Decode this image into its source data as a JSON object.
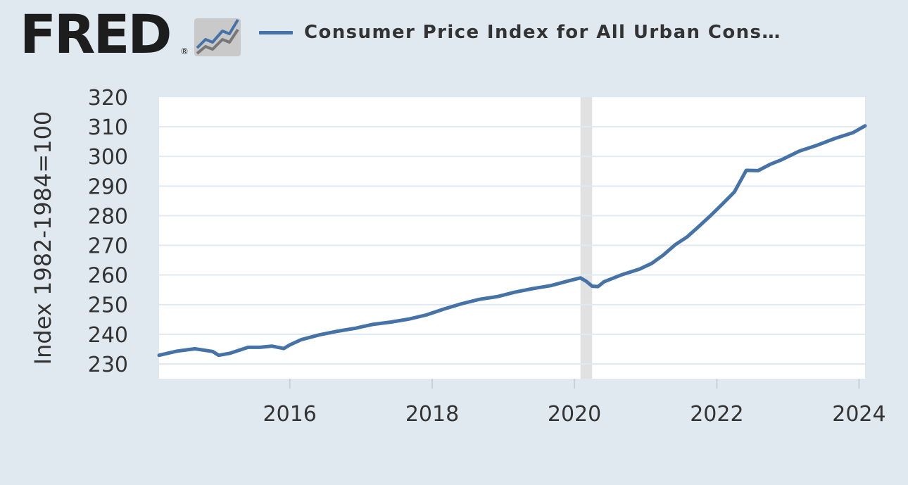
{
  "header": {
    "logo_text": "FRED",
    "logo_reg": "®",
    "legend_label": "Consumer Price Index for All Urban Cons…"
  },
  "colors": {
    "background": "#e1e9f0",
    "plot_bg": "#ffffff",
    "series": "#4572a7",
    "recession": "#e1e1e1",
    "grid": "#e1e9f0",
    "text": "#333333"
  },
  "chart_data": {
    "type": "line",
    "title": "",
    "xlabel": "",
    "ylabel": "Index 1982-1984=100",
    "ylim": [
      225,
      320
    ],
    "yticks": [
      230,
      240,
      250,
      260,
      270,
      280,
      290,
      300,
      310,
      320
    ],
    "xlim": [
      "2014-03-01",
      "2024-02-01"
    ],
    "xticks": [
      "2016",
      "2018",
      "2020",
      "2022",
      "2024"
    ],
    "grid": true,
    "legend_position": "top",
    "recession": {
      "start": "2020-02-01",
      "end": "2020-04-01"
    },
    "series": [
      {
        "name": "Consumer Price Index for All Urban Cons…",
        "x": [
          "2014-03",
          "2014-06",
          "2014-09",
          "2014-12",
          "2015-01",
          "2015-03",
          "2015-06",
          "2015-08",
          "2015-10",
          "2015-12",
          "2016-01",
          "2016-03",
          "2016-06",
          "2016-09",
          "2016-12",
          "2017-03",
          "2017-06",
          "2017-09",
          "2017-12",
          "2018-03",
          "2018-06",
          "2018-09",
          "2018-12",
          "2019-03",
          "2019-06",
          "2019-09",
          "2019-12",
          "2020-02",
          "2020-03",
          "2020-04",
          "2020-05",
          "2020-06",
          "2020-09",
          "2020-12",
          "2021-02",
          "2021-04",
          "2021-06",
          "2021-08",
          "2021-10",
          "2021-12",
          "2022-02",
          "2022-04",
          "2022-06",
          "2022-08",
          "2022-10",
          "2022-12",
          "2023-03",
          "2023-06",
          "2023-09",
          "2023-12",
          "2024-02"
        ],
        "values": [
          232.9,
          234.3,
          235.1,
          234.2,
          232.9,
          233.6,
          235.6,
          235.6,
          236.0,
          235.2,
          236.4,
          238.2,
          239.8,
          241.0,
          242.0,
          243.3,
          244.1,
          245.1,
          246.5,
          248.5,
          250.3,
          251.8,
          252.7,
          254.2,
          255.4,
          256.4,
          258.0,
          259.0,
          257.9,
          256.2,
          256.1,
          257.7,
          260.1,
          262.0,
          263.9,
          266.7,
          270.2,
          272.8,
          276.4,
          280.1,
          284.1,
          288.0,
          295.3,
          295.2,
          297.3,
          298.9,
          301.8,
          303.8,
          306.1,
          308.0,
          310.3
        ]
      }
    ]
  }
}
